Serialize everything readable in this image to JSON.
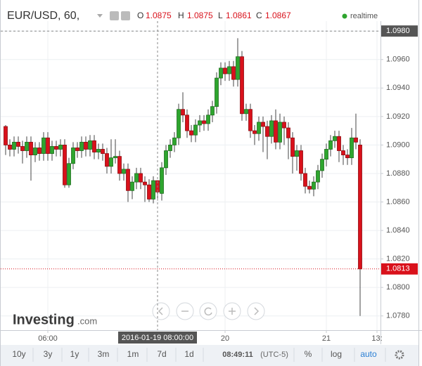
{
  "header": {
    "symbol": "EUR/USD, 60,",
    "ohlc_labels": [
      "O",
      "H",
      "L",
      "C"
    ],
    "status": "realtime"
  },
  "logo": {
    "name": "Investing",
    "suffix": ".com"
  },
  "toolbar": {
    "ranges": [
      "10y",
      "3y",
      "1y",
      "3m",
      "1m",
      "7d",
      "1d"
    ],
    "time": "08:49:11",
    "timezone": "(UTC-5)",
    "options": [
      "%",
      "log",
      "auto"
    ]
  },
  "chart_data": {
    "type": "candlestick",
    "categories": [
      null,
      null,
      null,
      null,
      null,
      null,
      null,
      null,
      null,
      null,
      "06:00",
      null,
      null,
      null,
      null,
      null,
      null,
      null,
      null,
      null,
      null,
      null,
      null,
      null,
      null,
      null,
      null,
      null,
      null,
      null,
      null,
      null,
      null,
      null,
      null,
      null,
      null,
      null,
      null,
      null,
      null,
      null,
      null,
      null,
      null,
      null,
      null,
      null,
      null,
      null,
      null,
      null,
      "20",
      null,
      null,
      null,
      null,
      null,
      null,
      null,
      null,
      null,
      null,
      null,
      null,
      null,
      null,
      null,
      null,
      null,
      null,
      null,
      null,
      null,
      null,
      null,
      "21",
      null,
      null,
      null,
      null,
      null,
      null,
      null,
      null,
      null,
      null,
      null,
      "13:"
    ],
    "open": [
      1.0913,
      1.09,
      1.0897,
      1.0902,
      1.0899,
      1.0896,
      1.0902,
      1.0893,
      1.0898,
      1.0894,
      1.0905,
      1.0894,
      1.0899,
      1.0897,
      1.09,
      1.0872,
      1.0887,
      1.0898,
      1.0896,
      1.0902,
      1.0897,
      1.0903,
      1.0895,
      1.0897,
      1.0894,
      1.0885,
      1.0891,
      1.0892,
      1.088,
      1.0883,
      1.0868,
      1.0874,
      1.088,
      1.0874,
      1.0872,
      1.0862,
      1.0875,
      1.0866,
      1.0884,
      1.0896,
      1.09,
      1.0905,
      1.0925,
      1.0921,
      1.091,
      1.0907,
      1.0914,
      1.0917,
      1.0915,
      1.0921,
      1.0927,
      1.0947,
      1.0954,
      1.095,
      1.0955,
      1.0946,
      1.0962,
      1.0922,
      1.0925,
      1.091,
      1.0908,
      1.0916,
      1.0913,
      1.0906,
      1.0917,
      1.0902,
      1.0916,
      1.0912,
      1.0905,
      1.0892,
      1.0896,
      1.088,
      1.0871,
      1.0869,
      1.0874,
      1.0882,
      1.089,
      1.0897,
      1.0903,
      1.0906,
      1.0896,
      1.0893,
      1.0891,
      1.0905,
      1.09,
      null,
      null,
      null,
      null
    ],
    "high": [
      1.0914,
      1.0904,
      1.0906,
      1.0906,
      1.0903,
      1.0906,
      1.0906,
      1.0902,
      1.0902,
      1.0909,
      1.0909,
      1.0903,
      1.0903,
      1.0904,
      1.0904,
      1.0891,
      1.0902,
      1.0902,
      1.0906,
      1.0906,
      1.0907,
      1.0907,
      1.0901,
      1.0901,
      1.0898,
      1.0904,
      1.0904,
      1.0896,
      1.0887,
      1.0887,
      1.0878,
      1.0884,
      1.0884,
      1.0878,
      1.0876,
      1.0878,
      1.0875,
      1.0888,
      1.09,
      1.0904,
      1.0909,
      1.0929,
      1.0937,
      1.0925,
      1.0914,
      1.0918,
      1.0921,
      1.0921,
      1.0925,
      1.0931,
      1.0951,
      1.0958,
      1.0958,
      1.0959,
      1.0959,
      1.0975,
      1.0966,
      1.0929,
      1.0929,
      1.0914,
      1.092,
      1.092,
      1.0917,
      1.0921,
      1.0925,
      1.0922,
      1.092,
      1.0916,
      1.0909,
      1.09,
      1.09,
      1.0884,
      1.0875,
      1.0878,
      1.0886,
      1.0894,
      1.0901,
      1.0907,
      1.091,
      1.091,
      1.09,
      1.0897,
      1.0912,
      1.0922,
      1.0904,
      null,
      null,
      null,
      null
    ],
    "low": [
      1.0893,
      1.0892,
      1.0892,
      1.0894,
      1.0887,
      1.0891,
      1.0875,
      1.0888,
      1.0889,
      1.0889,
      1.0889,
      1.0889,
      1.0892,
      1.0892,
      1.087,
      1.087,
      1.0883,
      1.0891,
      1.0891,
      1.0892,
      1.0892,
      1.089,
      1.089,
      1.0889,
      1.088,
      1.088,
      1.0887,
      1.0875,
      1.0875,
      1.086,
      1.0862,
      1.0869,
      1.0869,
      1.086,
      1.086,
      1.0859,
      1.0861,
      1.0861,
      1.0879,
      1.0891,
      1.0895,
      1.09,
      1.0916,
      1.0905,
      1.0902,
      1.0902,
      1.0909,
      1.091,
      1.091,
      1.0916,
      1.0922,
      1.0942,
      1.0945,
      1.0945,
      1.0941,
      1.0941,
      1.0917,
      1.0917,
      1.0905,
      1.09,
      1.0903,
      1.0895,
      1.089,
      1.0901,
      1.0897,
      1.0897,
      1.09,
      1.089,
      1.088,
      1.0882,
      1.0875,
      1.0866,
      1.0866,
      1.0864,
      1.0869,
      1.0877,
      1.0885,
      1.0892,
      1.0898,
      1.0888,
      1.0886,
      1.0886,
      1.0886,
      1.0897,
      1.078,
      null,
      null,
      null,
      null
    ],
    "close": [
      1.09,
      1.0897,
      1.0902,
      1.0899,
      1.0896,
      1.0902,
      1.0893,
      1.0898,
      1.0894,
      1.0905,
      1.0894,
      1.0899,
      1.0897,
      1.09,
      1.0872,
      1.0887,
      1.0898,
      1.0896,
      1.0902,
      1.0897,
      1.0903,
      1.0895,
      1.0897,
      1.0894,
      1.0885,
      1.0891,
      1.0892,
      1.088,
      1.0883,
      1.0868,
      1.0874,
      1.088,
      1.0874,
      1.0872,
      1.0862,
      1.0875,
      1.0867,
      1.0884,
      1.0896,
      1.09,
      1.0905,
      1.0925,
      1.0921,
      1.091,
      1.0907,
      1.0914,
      1.0917,
      1.0915,
      1.0921,
      1.0927,
      1.0947,
      1.0954,
      1.095,
      1.0955,
      1.0946,
      1.0962,
      1.0922,
      1.0925,
      1.091,
      1.0908,
      1.0916,
      1.0913,
      1.0906,
      1.0917,
      1.0902,
      1.0916,
      1.0912,
      1.0905,
      1.0892,
      1.0896,
      1.088,
      1.0871,
      1.0869,
      1.0874,
      1.0882,
      1.089,
      1.0897,
      1.0903,
      1.0906,
      1.0896,
      1.0893,
      1.0891,
      1.0905,
      1.0902,
      1.0813,
      null,
      null,
      null,
      null
    ],
    "up_color": "#2ea52e",
    "down_color": "#d9111b",
    "ylim": [
      1.077,
      1.0987
    ],
    "yticks": [
      {
        "value": 1.078,
        "label": "1.0780"
      },
      {
        "value": 1.08,
        "label": "1.0800"
      },
      {
        "value": 1.082,
        "label": "1.0820"
      },
      {
        "value": 1.084,
        "label": "1.0840"
      },
      {
        "value": 1.086,
        "label": "1.0860"
      },
      {
        "value": 1.088,
        "label": "1.0880"
      },
      {
        "value": 1.09,
        "label": "1.0900"
      },
      {
        "value": 1.092,
        "label": "1.0920"
      },
      {
        "value": 1.094,
        "label": "1.0940"
      },
      {
        "value": 1.096,
        "label": "1.0960"
      },
      {
        "value": 1.098,
        "label": "1.0980"
      }
    ],
    "grid": true,
    "crosshair": {
      "x": {
        "value": 36,
        "label": "2016-01-19 08:00:00"
      },
      "y": {
        "value": 1.098,
        "label": "1.0980"
      }
    },
    "legend_index": 36,
    "last_index": 84
  }
}
